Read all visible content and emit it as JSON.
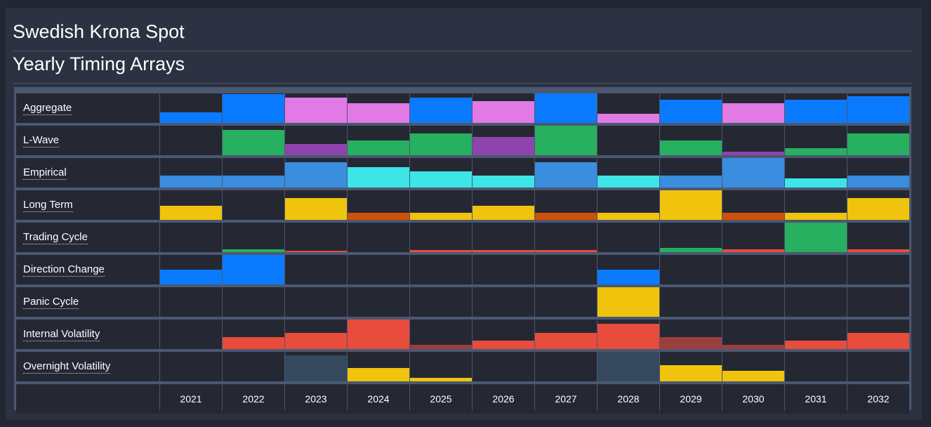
{
  "header": {
    "title": "Swedish Krona Spot",
    "subtitle": "Yearly Timing Arrays"
  },
  "colors": {
    "blue": "#0a7aff",
    "violet": "#e17ae5",
    "green": "#26b05f",
    "purple": "#8e44ad",
    "sky": "#3b8de0",
    "cyan": "#3ee5e8",
    "yellow": "#f0c40d",
    "orange": "#d0510a",
    "red": "#e84c3d",
    "darkred": "#9a3f3d",
    "slate": "#34495e"
  },
  "years": [
    "2021",
    "2022",
    "2023",
    "2024",
    "2025",
    "2026",
    "2027",
    "2028",
    "2029",
    "2030",
    "2031",
    "2032"
  ],
  "rows": [
    {
      "label": "Aggregate",
      "cells": [
        {
          "v": 0.36,
          "c": "blue"
        },
        {
          "v": 0.98,
          "c": "blue"
        },
        {
          "v": 0.86,
          "c": "violet"
        },
        {
          "v": 0.67,
          "c": "violet"
        },
        {
          "v": 0.86,
          "c": "blue"
        },
        {
          "v": 0.73,
          "c": "violet"
        },
        {
          "v": 1.0,
          "c": "blue"
        },
        {
          "v": 0.3,
          "c": "violet"
        },
        {
          "v": 0.79,
          "c": "blue"
        },
        {
          "v": 0.67,
          "c": "violet"
        },
        {
          "v": 0.79,
          "c": "blue"
        },
        {
          "v": 0.91,
          "c": "blue"
        }
      ]
    },
    {
      "label": "L-Wave",
      "cells": [
        {
          "v": 0,
          "c": "green"
        },
        {
          "v": 0.86,
          "c": "green"
        },
        {
          "v": 0.38,
          "c": "purple"
        },
        {
          "v": 0.5,
          "c": "green"
        },
        {
          "v": 0.74,
          "c": "green"
        },
        {
          "v": 0.62,
          "c": "purple"
        },
        {
          "v": 1.0,
          "c": "green"
        },
        {
          "v": 0,
          "c": "green"
        },
        {
          "v": 0.5,
          "c": "green"
        },
        {
          "v": 0.12,
          "c": "purple"
        },
        {
          "v": 0.24,
          "c": "green"
        },
        {
          "v": 0.74,
          "c": "green"
        }
      ]
    },
    {
      "label": "Empirical",
      "cells": [
        {
          "v": 0.4,
          "c": "sky"
        },
        {
          "v": 0.4,
          "c": "sky"
        },
        {
          "v": 0.86,
          "c": "sky"
        },
        {
          "v": 0.69,
          "c": "cyan"
        },
        {
          "v": 0.55,
          "c": "cyan"
        },
        {
          "v": 0.4,
          "c": "cyan"
        },
        {
          "v": 0.86,
          "c": "sky"
        },
        {
          "v": 0.4,
          "c": "cyan"
        },
        {
          "v": 0.4,
          "c": "sky"
        },
        {
          "v": 1.0,
          "c": "sky"
        },
        {
          "v": 0.31,
          "c": "cyan"
        },
        {
          "v": 0.4,
          "c": "sky"
        }
      ]
    },
    {
      "label": "Long Term",
      "cells": [
        {
          "v": 0.48,
          "c": "yellow"
        },
        {
          "v": 0,
          "c": "yellow"
        },
        {
          "v": 0.74,
          "c": "yellow"
        },
        {
          "v": 0.24,
          "c": "orange"
        },
        {
          "v": 0.24,
          "c": "yellow"
        },
        {
          "v": 0.48,
          "c": "yellow"
        },
        {
          "v": 0.24,
          "c": "orange"
        },
        {
          "v": 0.24,
          "c": "yellow"
        },
        {
          "v": 1.0,
          "c": "yellow"
        },
        {
          "v": 0.24,
          "c": "orange"
        },
        {
          "v": 0.24,
          "c": "yellow"
        },
        {
          "v": 0.74,
          "c": "yellow"
        }
      ]
    },
    {
      "label": "Trading Cycle",
      "cells": [
        {
          "v": 0,
          "c": "green"
        },
        {
          "v": 0.1,
          "c": "green"
        },
        {
          "v": 0.05,
          "c": "red"
        },
        {
          "v": 0,
          "c": "red"
        },
        {
          "v": 0.07,
          "c": "red"
        },
        {
          "v": 0.07,
          "c": "red"
        },
        {
          "v": 0.07,
          "c": "red"
        },
        {
          "v": 0,
          "c": "red"
        },
        {
          "v": 0.14,
          "c": "green"
        },
        {
          "v": 0.1,
          "c": "red"
        },
        {
          "v": 1.0,
          "c": "green"
        },
        {
          "v": 0.1,
          "c": "red"
        }
      ]
    },
    {
      "label": "Direction Change",
      "cells": [
        {
          "v": 0.5,
          "c": "blue"
        },
        {
          "v": 1.0,
          "c": "blue"
        },
        {
          "v": 0,
          "c": "blue"
        },
        {
          "v": 0,
          "c": "blue"
        },
        {
          "v": 0,
          "c": "blue"
        },
        {
          "v": 0,
          "c": "blue"
        },
        {
          "v": 0,
          "c": "blue"
        },
        {
          "v": 0.5,
          "c": "blue"
        },
        {
          "v": 0,
          "c": "blue"
        },
        {
          "v": 0,
          "c": "blue"
        },
        {
          "v": 0,
          "c": "blue"
        },
        {
          "v": 0,
          "c": "blue"
        }
      ]
    },
    {
      "label": "Panic Cycle",
      "cells": [
        {
          "v": 0,
          "c": "yellow"
        },
        {
          "v": 0,
          "c": "yellow"
        },
        {
          "v": 0,
          "c": "yellow"
        },
        {
          "v": 0,
          "c": "yellow"
        },
        {
          "v": 0,
          "c": "yellow"
        },
        {
          "v": 0,
          "c": "yellow"
        },
        {
          "v": 0,
          "c": "yellow"
        },
        {
          "v": 1.0,
          "c": "yellow"
        },
        {
          "v": 0,
          "c": "yellow"
        },
        {
          "v": 0,
          "c": "yellow"
        },
        {
          "v": 0,
          "c": "yellow"
        },
        {
          "v": 0,
          "c": "yellow"
        }
      ]
    },
    {
      "label": "Internal Volatility",
      "cells": [
        {
          "v": 0,
          "c": "red"
        },
        {
          "v": 0.4,
          "c": "red"
        },
        {
          "v": 0.55,
          "c": "red"
        },
        {
          "v": 1.0,
          "c": "red"
        },
        {
          "v": 0.14,
          "c": "darkred"
        },
        {
          "v": 0.29,
          "c": "red"
        },
        {
          "v": 0.55,
          "c": "red"
        },
        {
          "v": 0.86,
          "c": "red"
        },
        {
          "v": 0.4,
          "c": "darkred"
        },
        {
          "v": 0.14,
          "c": "darkred"
        },
        {
          "v": 0.29,
          "c": "red"
        },
        {
          "v": 0.55,
          "c": "red"
        }
      ]
    },
    {
      "label": "Overnight Volatility",
      "cells": [
        {
          "v": 0,
          "c": "yellow"
        },
        {
          "v": 0,
          "c": "yellow"
        },
        {
          "v": 0.88,
          "c": "slate"
        },
        {
          "v": 0.45,
          "c": "yellow"
        },
        {
          "v": 0.12,
          "c": "yellow"
        },
        {
          "v": 0,
          "c": "yellow"
        },
        {
          "v": 0,
          "c": "yellow"
        },
        {
          "v": 1.0,
          "c": "slate"
        },
        {
          "v": 0.55,
          "c": "yellow"
        },
        {
          "v": 0.36,
          "c": "yellow"
        },
        {
          "v": 0,
          "c": "yellow"
        },
        {
          "v": 0,
          "c": "yellow"
        }
      ]
    }
  ]
}
